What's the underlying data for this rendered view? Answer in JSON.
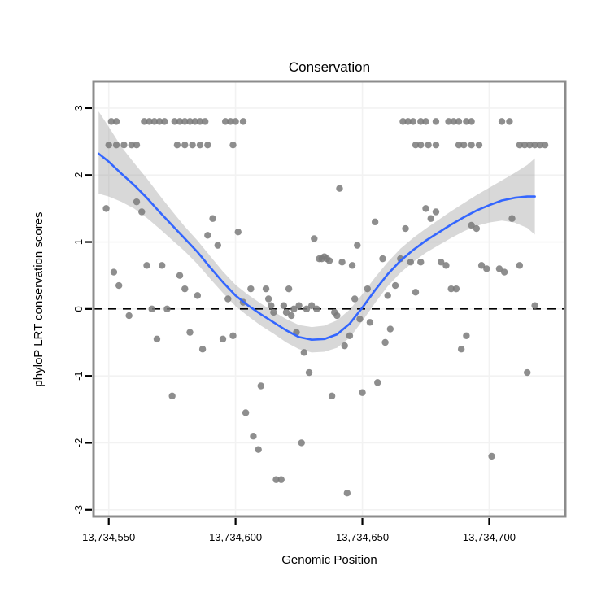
{
  "chart_data": {
    "type": "scatter",
    "title": "Conservation",
    "xlabel": "Genomic Position",
    "ylabel": "phyloP LRT conservation scores",
    "xlim": [
      13734544,
      13734730
    ],
    "ylim": [
      -3.1,
      3.4
    ],
    "grid": true,
    "legend": "none",
    "reference_line_y": 0,
    "x_ticks": [
      {
        "value": 13734550,
        "label": "13,734,550"
      },
      {
        "value": 13734600,
        "label": "13,734,600"
      },
      {
        "value": 13734650,
        "label": "13,734,650"
      },
      {
        "value": 13734700,
        "label": "13,734,700"
      }
    ],
    "y_ticks": [
      {
        "value": 3,
        "label": "3"
      },
      {
        "value": 2,
        "label": "2"
      },
      {
        "value": 1,
        "label": "1"
      },
      {
        "value": 0,
        "label": "0"
      },
      {
        "value": -1,
        "label": "-1"
      },
      {
        "value": -2,
        "label": "-2"
      },
      {
        "value": -3,
        "label": "-3"
      }
    ],
    "colors": {
      "points": "#7a7a7a",
      "smooth_line": "#3366ff",
      "ribbon": "#9e9e9e",
      "reference_line": "#000000",
      "panel_border": "#8c8c8c",
      "grid": "#f2f2f2",
      "panel_background": "#ffffff"
    },
    "points": [
      [
        13734551,
        2.8
      ],
      [
        13734553,
        2.8
      ],
      [
        13734564,
        2.8
      ],
      [
        13734566,
        2.8
      ],
      [
        13734568,
        2.8
      ],
      [
        13734570,
        2.8
      ],
      [
        13734572,
        2.8
      ],
      [
        13734576,
        2.8
      ],
      [
        13734578,
        2.8
      ],
      [
        13734580,
        2.8
      ],
      [
        13734582,
        2.8
      ],
      [
        13734584,
        2.8
      ],
      [
        13734586,
        2.8
      ],
      [
        13734588,
        2.8
      ],
      [
        13734596,
        2.8
      ],
      [
        13734598,
        2.8
      ],
      [
        13734600,
        2.8
      ],
      [
        13734603,
        2.8
      ],
      [
        13734666,
        2.8
      ],
      [
        13734668,
        2.8
      ],
      [
        13734670,
        2.8
      ],
      [
        13734673,
        2.8
      ],
      [
        13734675,
        2.8
      ],
      [
        13734679,
        2.8
      ],
      [
        13734684,
        2.8
      ],
      [
        13734686,
        2.8
      ],
      [
        13734688,
        2.8
      ],
      [
        13734691,
        2.8
      ],
      [
        13734693,
        2.8
      ],
      [
        13734705,
        2.8
      ],
      [
        13734708,
        2.8
      ],
      [
        13734550,
        2.45
      ],
      [
        13734553,
        2.45
      ],
      [
        13734556,
        2.45
      ],
      [
        13734559,
        2.45
      ],
      [
        13734561,
        2.45
      ],
      [
        13734577,
        2.45
      ],
      [
        13734580,
        2.45
      ],
      [
        13734583,
        2.45
      ],
      [
        13734586,
        2.45
      ],
      [
        13734589,
        2.45
      ],
      [
        13734599,
        2.45
      ],
      [
        13734671,
        2.45
      ],
      [
        13734673,
        2.45
      ],
      [
        13734676,
        2.45
      ],
      [
        13734679,
        2.45
      ],
      [
        13734688,
        2.45
      ],
      [
        13734690,
        2.45
      ],
      [
        13734693,
        2.45
      ],
      [
        13734696,
        2.45
      ],
      [
        13734712,
        2.45
      ],
      [
        13734714,
        2.45
      ],
      [
        13734716,
        2.45
      ],
      [
        13734718,
        2.45
      ],
      [
        13734720,
        2.45
      ],
      [
        13734722,
        2.45
      ],
      [
        13734549,
        1.5
      ],
      [
        13734552,
        0.55
      ],
      [
        13734554,
        0.35
      ],
      [
        13734558,
        -0.1
      ],
      [
        13734561,
        1.6
      ],
      [
        13734563,
        1.45
      ],
      [
        13734565,
        0.65
      ],
      [
        13734567,
        0.0
      ],
      [
        13734569,
        -0.45
      ],
      [
        13734571,
        0.65
      ],
      [
        13734573,
        0.0
      ],
      [
        13734575,
        -1.3
      ],
      [
        13734578,
        0.5
      ],
      [
        13734580,
        0.3
      ],
      [
        13734582,
        -0.35
      ],
      [
        13734585,
        0.2
      ],
      [
        13734587,
        -0.6
      ],
      [
        13734589,
        1.1
      ],
      [
        13734591,
        1.35
      ],
      [
        13734593,
        0.95
      ],
      [
        13734595,
        -0.45
      ],
      [
        13734597,
        0.15
      ],
      [
        13734599,
        -0.4
      ],
      [
        13734601,
        1.15
      ],
      [
        13734603,
        0.1
      ],
      [
        13734604,
        -1.55
      ],
      [
        13734606,
        0.3
      ],
      [
        13734607,
        -1.9
      ],
      [
        13734609,
        -2.1
      ],
      [
        13734610,
        -1.15
      ],
      [
        13734612,
        0.3
      ],
      [
        13734613,
        0.15
      ],
      [
        13734614,
        0.05
      ],
      [
        13734615,
        -0.05
      ],
      [
        13734616,
        -2.55
      ],
      [
        13734618,
        -2.55
      ],
      [
        13734619,
        0.05
      ],
      [
        13734620,
        -0.05
      ],
      [
        13734621,
        0.3
      ],
      [
        13734622,
        -0.1
      ],
      [
        13734623,
        0.0
      ],
      [
        13734624,
        -0.35
      ],
      [
        13734625,
        0.05
      ],
      [
        13734626,
        -2.0
      ],
      [
        13734627,
        -0.65
      ],
      [
        13734628,
        0.0
      ],
      [
        13734629,
        -0.95
      ],
      [
        13734630,
        0.05
      ],
      [
        13734631,
        1.05
      ],
      [
        13734632,
        0.0
      ],
      [
        13734633,
        0.75
      ],
      [
        13734634,
        0.75
      ],
      [
        13734635,
        0.78
      ],
      [
        13734636,
        0.75
      ],
      [
        13734637,
        0.72
      ],
      [
        13734638,
        -1.3
      ],
      [
        13734639,
        -0.05
      ],
      [
        13734640,
        -0.1
      ],
      [
        13734641,
        1.8
      ],
      [
        13734642,
        0.7
      ],
      [
        13734643,
        -0.55
      ],
      [
        13734644,
        -2.75
      ],
      [
        13734645,
        -0.4
      ],
      [
        13734646,
        0.65
      ],
      [
        13734647,
        0.15
      ],
      [
        13734648,
        0.95
      ],
      [
        13734649,
        -0.15
      ],
      [
        13734650,
        -1.25
      ],
      [
        13734652,
        0.3
      ],
      [
        13734653,
        -0.2
      ],
      [
        13734655,
        1.3
      ],
      [
        13734656,
        -1.1
      ],
      [
        13734658,
        0.75
      ],
      [
        13734659,
        -0.5
      ],
      [
        13734660,
        0.2
      ],
      [
        13734661,
        -0.3
      ],
      [
        13734663,
        0.35
      ],
      [
        13734665,
        0.75
      ],
      [
        13734667,
        1.2
      ],
      [
        13734669,
        0.7
      ],
      [
        13734671,
        0.25
      ],
      [
        13734673,
        0.7
      ],
      [
        13734675,
        1.5
      ],
      [
        13734677,
        1.35
      ],
      [
        13734679,
        1.45
      ],
      [
        13734681,
        0.7
      ],
      [
        13734683,
        0.65
      ],
      [
        13734685,
        0.3
      ],
      [
        13734687,
        0.3
      ],
      [
        13734689,
        -0.6
      ],
      [
        13734691,
        -0.4
      ],
      [
        13734693,
        1.25
      ],
      [
        13734695,
        1.2
      ],
      [
        13734697,
        0.65
      ],
      [
        13734699,
        0.6
      ],
      [
        13734701,
        -2.2
      ],
      [
        13734704,
        0.6
      ],
      [
        13734706,
        0.55
      ],
      [
        13734709,
        1.35
      ],
      [
        13734712,
        0.65
      ],
      [
        13734715,
        -0.95
      ],
      [
        13734718,
        0.05
      ]
    ],
    "smooth": {
      "x": [
        13734546,
        13734550,
        13734555,
        13734560,
        13734565,
        13734570,
        13734575,
        13734580,
        13734585,
        13734590,
        13734595,
        13734600,
        13734605,
        13734610,
        13734615,
        13734620,
        13734625,
        13734630,
        13734635,
        13734640,
        13734645,
        13734650,
        13734655,
        13734660,
        13734665,
        13734670,
        13734675,
        13734680,
        13734685,
        13734690,
        13734695,
        13734700,
        13734705,
        13734710,
        13734715,
        13734718
      ],
      "y": [
        2.32,
        2.2,
        2.02,
        1.85,
        1.66,
        1.45,
        1.25,
        1.05,
        0.85,
        0.62,
        0.4,
        0.2,
        0.05,
        -0.08,
        -0.2,
        -0.32,
        -0.42,
        -0.46,
        -0.45,
        -0.38,
        -0.22,
        0.02,
        0.28,
        0.52,
        0.72,
        0.88,
        1.02,
        1.14,
        1.26,
        1.37,
        1.47,
        1.55,
        1.62,
        1.66,
        1.68,
        1.68
      ]
    },
    "ribbon": {
      "x": [
        13734546,
        13734550,
        13734555,
        13734560,
        13734565,
        13734570,
        13734575,
        13734580,
        13734585,
        13734590,
        13734595,
        13734600,
        13734605,
        13734610,
        13734615,
        13734620,
        13734625,
        13734630,
        13734635,
        13734640,
        13734645,
        13734650,
        13734655,
        13734660,
        13734665,
        13734670,
        13734675,
        13734680,
        13734685,
        13734690,
        13734695,
        13734700,
        13734705,
        13734710,
        13734715,
        13734718
      ],
      "upper": [
        2.95,
        2.72,
        2.42,
        2.18,
        1.95,
        1.7,
        1.46,
        1.23,
        1.02,
        0.79,
        0.56,
        0.36,
        0.21,
        0.08,
        -0.04,
        -0.15,
        -0.24,
        -0.27,
        -0.25,
        -0.17,
        -0.01,
        0.22,
        0.47,
        0.7,
        0.9,
        1.06,
        1.2,
        1.33,
        1.46,
        1.58,
        1.7,
        1.81,
        1.92,
        2.03,
        2.15,
        2.25
      ],
      "lower": [
        1.72,
        1.68,
        1.6,
        1.5,
        1.36,
        1.2,
        1.03,
        0.86,
        0.67,
        0.45,
        0.24,
        0.04,
        -0.11,
        -0.25,
        -0.37,
        -0.5,
        -0.6,
        -0.65,
        -0.64,
        -0.58,
        -0.43,
        -0.18,
        0.09,
        0.34,
        0.54,
        0.7,
        0.84,
        0.95,
        1.06,
        1.16,
        1.24,
        1.29,
        1.32,
        1.29,
        1.21,
        1.11
      ]
    }
  }
}
